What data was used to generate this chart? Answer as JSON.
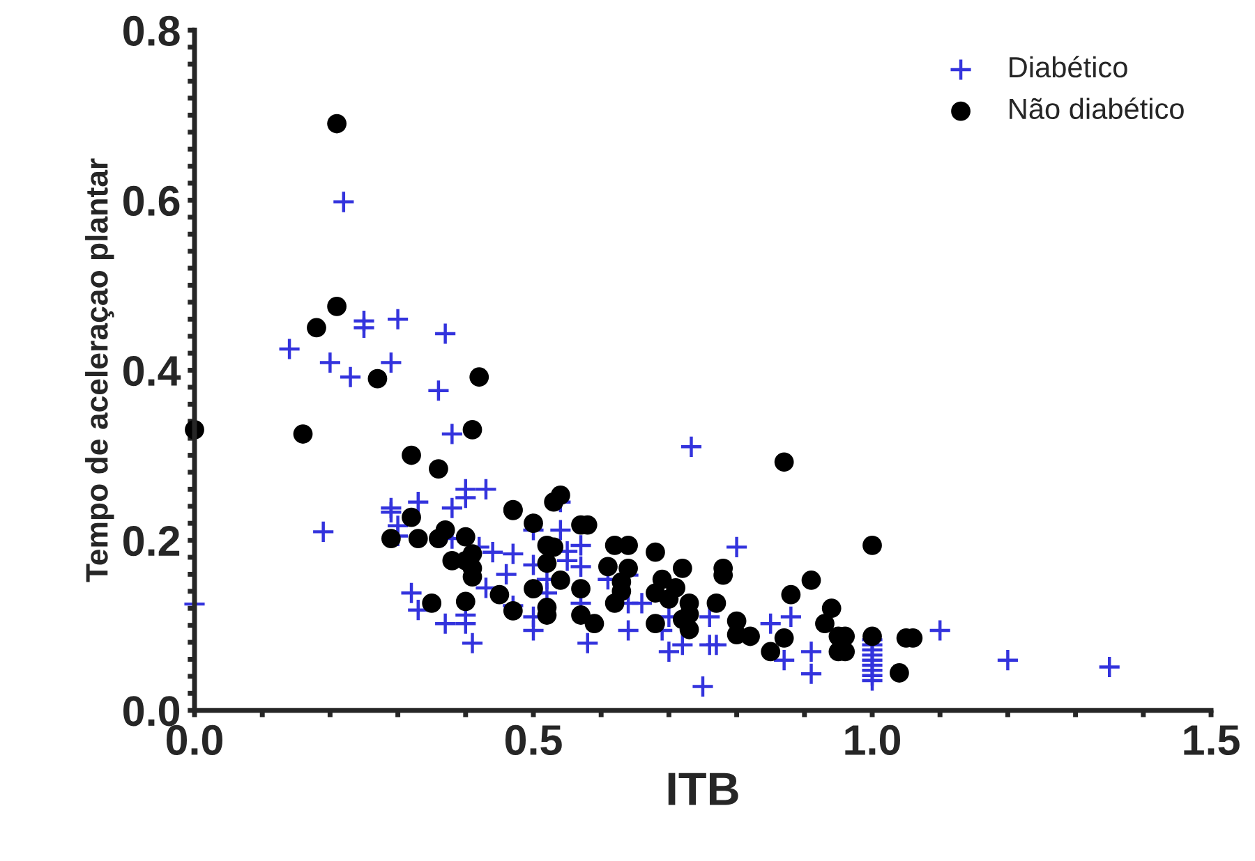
{
  "chart_data": {
    "type": "scatter",
    "xlabel": "ITB",
    "ylabel": "Tempo de aceleraçao plantar",
    "xlim": [
      0,
      1.5
    ],
    "ylim": [
      0,
      0.8
    ],
    "xticks": [
      {
        "value": 0,
        "label": "0.0"
      },
      {
        "value": 0.1,
        "label": null
      },
      {
        "value": 0.2,
        "label": null
      },
      {
        "value": 0.3,
        "label": null
      },
      {
        "value": 0.4,
        "label": null
      },
      {
        "value": 0.5,
        "label": "0.5"
      },
      {
        "value": 0.6,
        "label": null
      },
      {
        "value": 0.7,
        "label": null
      },
      {
        "value": 0.8,
        "label": null
      },
      {
        "value": 0.9,
        "label": null
      },
      {
        "value": 1.0,
        "label": "1.0"
      },
      {
        "value": 1.1,
        "label": null
      },
      {
        "value": 1.2,
        "label": null
      },
      {
        "value": 1.3,
        "label": null
      },
      {
        "value": 1.4,
        "label": null
      },
      {
        "value": 1.5,
        "label": "1.5"
      }
    ],
    "yticks": [
      {
        "value": 0,
        "label": "0.0"
      },
      {
        "value": 0.02,
        "label": null
      },
      {
        "value": 0.04,
        "label": null
      },
      {
        "value": 0.06,
        "label": null
      },
      {
        "value": 0.08,
        "label": null
      },
      {
        "value": 0.1,
        "label": null
      },
      {
        "value": 0.12,
        "label": null
      },
      {
        "value": 0.14,
        "label": null
      },
      {
        "value": 0.16,
        "label": null
      },
      {
        "value": 0.18,
        "label": null
      },
      {
        "value": 0.2,
        "label": "0.2"
      },
      {
        "value": 0.22,
        "label": null
      },
      {
        "value": 0.24,
        "label": null
      },
      {
        "value": 0.26,
        "label": null
      },
      {
        "value": 0.28,
        "label": null
      },
      {
        "value": 0.3,
        "label": null
      },
      {
        "value": 0.32,
        "label": null
      },
      {
        "value": 0.34,
        "label": null
      },
      {
        "value": 0.36,
        "label": null
      },
      {
        "value": 0.38,
        "label": null
      },
      {
        "value": 0.4,
        "label": "0.4"
      },
      {
        "value": 0.42,
        "label": null
      },
      {
        "value": 0.44,
        "label": null
      },
      {
        "value": 0.46,
        "label": null
      },
      {
        "value": 0.48,
        "label": null
      },
      {
        "value": 0.5,
        "label": null
      },
      {
        "value": 0.52,
        "label": null
      },
      {
        "value": 0.54,
        "label": null
      },
      {
        "value": 0.56,
        "label": null
      },
      {
        "value": 0.58,
        "label": null
      },
      {
        "value": 0.6,
        "label": "0.6"
      },
      {
        "value": 0.62,
        "label": null
      },
      {
        "value": 0.64,
        "label": null
      },
      {
        "value": 0.66,
        "label": null
      },
      {
        "value": 0.68,
        "label": null
      },
      {
        "value": 0.7,
        "label": null
      },
      {
        "value": 0.72,
        "label": null
      },
      {
        "value": 0.74,
        "label": null
      },
      {
        "value": 0.76,
        "label": null
      },
      {
        "value": 0.78,
        "label": null
      },
      {
        "value": 0.8,
        "label": "0.8"
      }
    ],
    "grid": false,
    "legend": "top right",
    "series": [
      {
        "name": "Diabético",
        "color": "#3333dd",
        "marker": "cross",
        "x": [
          0.22,
          0.25,
          0.25,
          0.3,
          0.37,
          0.14,
          0.2,
          0.23,
          0.29,
          0.36,
          0.38,
          0.4,
          0.4,
          0.43,
          0.54,
          0.29,
          0.33,
          0.38,
          0.733,
          0.29,
          0.3,
          0.5,
          0.54,
          0.3,
          0.38,
          0.57,
          0.42,
          0.44,
          0.55,
          0.47,
          0.46,
          0.5,
          0.55,
          0.57,
          0.8,
          0.61,
          0.64,
          0.52,
          0.43,
          0.52,
          0.32,
          0.33,
          0.47,
          0.57,
          0.64,
          0.66,
          0.5,
          0.4,
          0.37,
          0.4,
          0.7,
          0.76,
          0.85,
          0.5,
          0.64,
          0.69,
          0.41,
          0.58,
          0.72,
          0.76,
          0.77,
          0.7,
          0.75,
          0.88,
          0.87,
          0.91,
          0.91,
          1.0,
          1.0,
          1.0,
          1.0,
          1.0,
          1.0,
          1.0,
          1.0,
          1.0,
          1.1,
          1.2,
          1.35,
          0.0,
          0.19
        ],
        "values": [
          0.598,
          0.458,
          0.45,
          0.46,
          0.443,
          0.425,
          0.409,
          0.392,
          0.409,
          0.376,
          0.325,
          0.26,
          0.25,
          0.26,
          0.245,
          0.238,
          0.245,
          0.238,
          0.31,
          0.233,
          0.217,
          0.212,
          0.212,
          0.205,
          0.202,
          0.194,
          0.192,
          0.186,
          0.187,
          0.184,
          0.16,
          0.171,
          0.176,
          0.169,
          0.192,
          0.154,
          0.159,
          0.154,
          0.144,
          0.138,
          0.138,
          0.118,
          0.123,
          0.126,
          0.126,
          0.126,
          0.11,
          0.112,
          0.102,
          0.102,
          0.11,
          0.11,
          0.102,
          0.094,
          0.094,
          0.094,
          0.079,
          0.079,
          0.077,
          0.077,
          0.077,
          0.069,
          0.028,
          0.11,
          0.059,
          0.069,
          0.043,
          0.083,
          0.077,
          0.071,
          0.065,
          0.059,
          0.053,
          0.047,
          0.041,
          0.035,
          0.094,
          0.059,
          0.051,
          0.125,
          0.21
        ]
      },
      {
        "name": "Não diabético",
        "color": "#000000",
        "marker": "circle",
        "x": [
          0.21,
          0.21,
          0.18,
          0.27,
          0.42,
          0.0,
          0.16,
          0.41,
          0.32,
          0.36,
          0.47,
          0.54,
          0.53,
          0.87,
          0.32,
          0.47,
          0.5,
          0.57,
          0.58,
          0.29,
          0.33,
          0.37,
          0.36,
          0.4,
          0.62,
          0.64,
          0.68,
          0.52,
          0.53,
          0.41,
          0.38,
          0.4,
          0.41,
          0.41,
          0.52,
          0.61,
          0.64,
          0.72,
          0.78,
          0.78,
          0.63,
          0.69,
          0.54,
          0.45,
          0.5,
          0.57,
          0.63,
          0.71,
          0.68,
          0.7,
          0.73,
          0.77,
          0.35,
          0.4,
          0.62,
          0.47,
          0.52,
          0.57,
          0.59,
          0.52,
          0.68,
          0.72,
          0.73,
          0.73,
          0.8,
          0.8,
          0.82,
          0.85,
          1.0,
          0.91,
          0.88,
          0.94,
          0.93,
          0.87,
          0.95,
          0.96,
          0.95,
          0.96,
          1.0,
          1.04,
          1.05,
          1.06
        ],
        "values": [
          0.69,
          0.475,
          0.45,
          0.39,
          0.392,
          0.33,
          0.325,
          0.33,
          0.3,
          0.284,
          0.236,
          0.253,
          0.245,
          0.292,
          0.227,
          0.235,
          0.22,
          0.218,
          0.218,
          0.202,
          0.202,
          0.212,
          0.202,
          0.204,
          0.194,
          0.194,
          0.186,
          0.194,
          0.192,
          0.184,
          0.176,
          0.176,
          0.167,
          0.157,
          0.173,
          0.169,
          0.167,
          0.167,
          0.167,
          0.159,
          0.151,
          0.154,
          0.153,
          0.136,
          0.143,
          0.143,
          0.14,
          0.144,
          0.138,
          0.131,
          0.126,
          0.126,
          0.126,
          0.128,
          0.126,
          0.117,
          0.121,
          0.112,
          0.102,
          0.112,
          0.102,
          0.107,
          0.095,
          0.113,
          0.105,
          0.089,
          0.087,
          0.069,
          0.194,
          0.153,
          0.136,
          0.12,
          0.102,
          0.085,
          0.087,
          0.087,
          0.069,
          0.069,
          0.087,
          0.044,
          0.085,
          0.085
        ]
      }
    ]
  }
}
